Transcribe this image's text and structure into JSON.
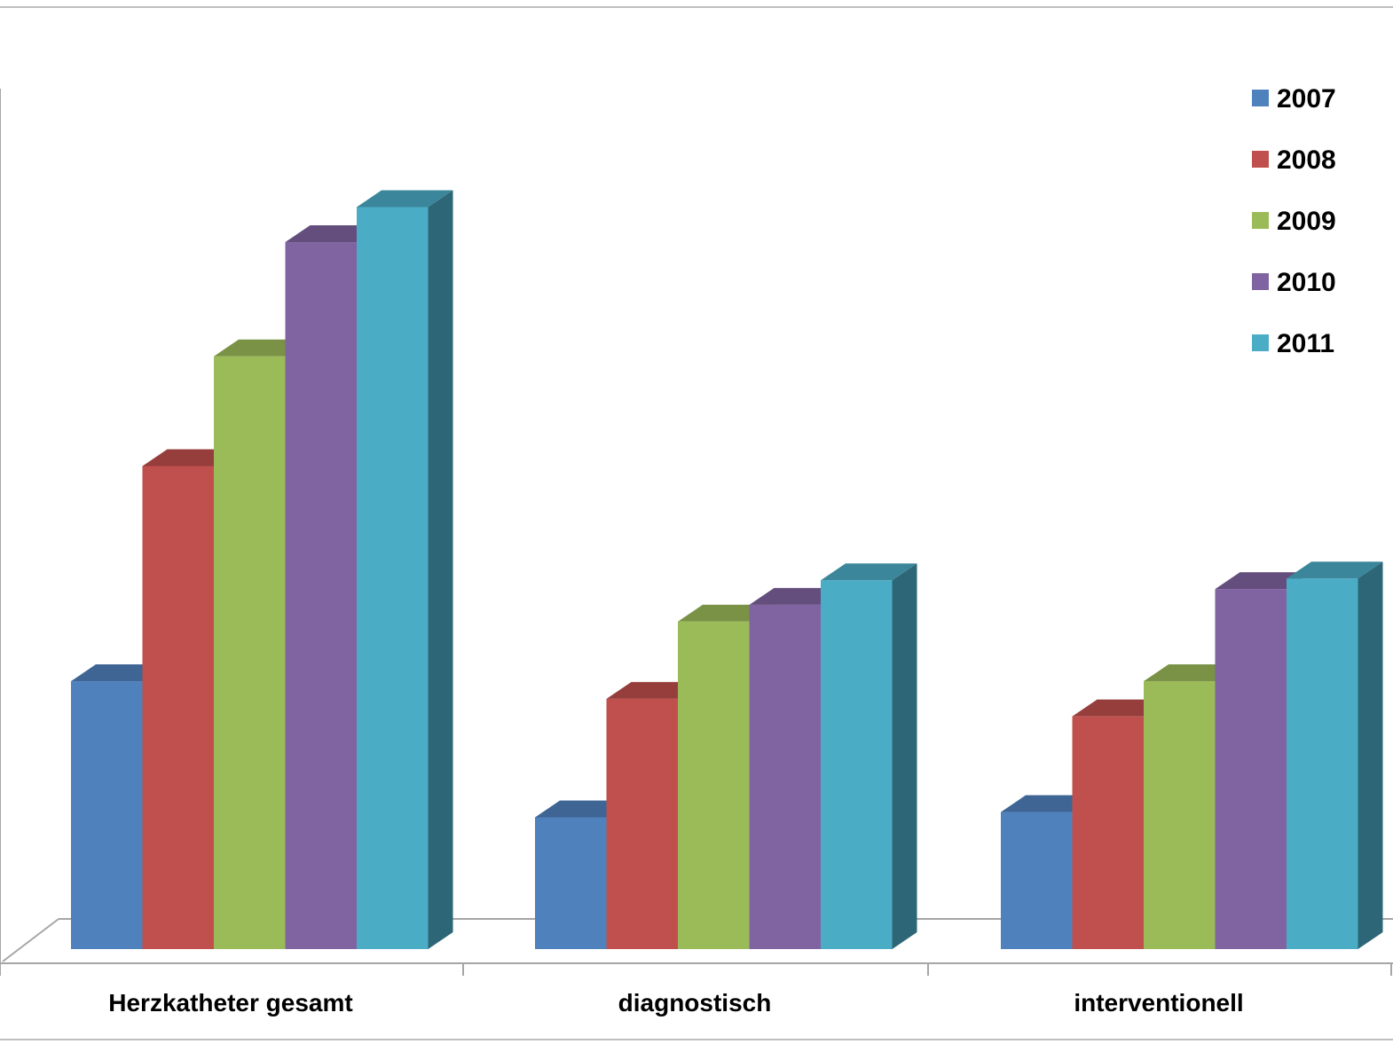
{
  "chart_data": {
    "type": "bar",
    "title": "",
    "xlabel": "",
    "ylabel": "",
    "categories": [
      "Herzkatheter gesamt",
      "diagnostisch",
      "interventionell"
    ],
    "series": [
      {
        "name": "2007",
        "color": "#4f81bd",
        "values": [
          30.5,
          15.0,
          15.6
        ]
      },
      {
        "name": "2008",
        "color": "#c0504d",
        "values": [
          55.0,
          28.5,
          26.5
        ]
      },
      {
        "name": "2009",
        "color": "#9bbb59",
        "values": [
          67.5,
          37.3,
          30.5
        ]
      },
      {
        "name": "2010",
        "color": "#8064a2",
        "values": [
          80.5,
          39.2,
          41.0
        ]
      },
      {
        "name": "2011",
        "color": "#4bacc6",
        "values": [
          84.5,
          42.0,
          42.2
        ]
      }
    ],
    "ylim": [
      0,
      100
    ],
    "grid": false,
    "legend_position": "top-right",
    "style": "3d-clustered-column"
  }
}
